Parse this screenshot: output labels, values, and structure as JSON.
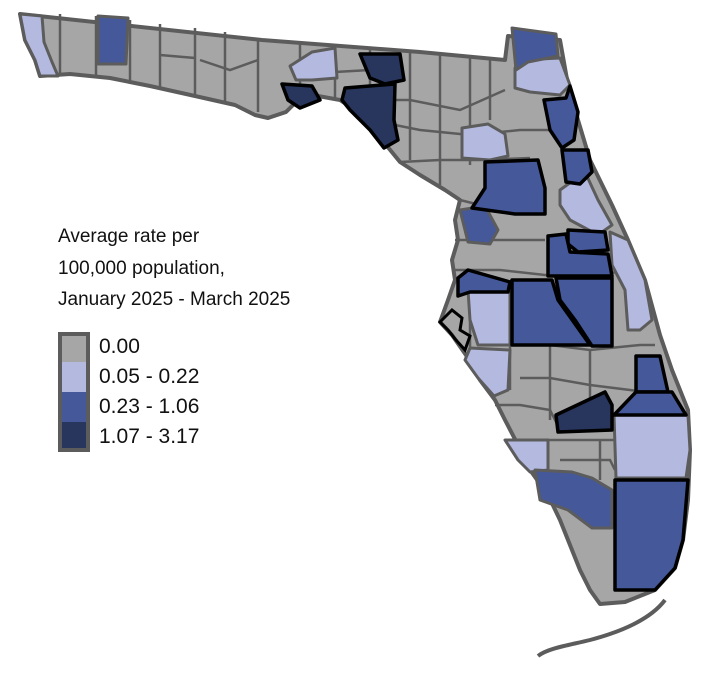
{
  "legend": {
    "title_lines": [
      "Average rate per",
      "100,000 population,",
      "January 2025 - March 2025"
    ],
    "classes": [
      {
        "label": "0.00",
        "color": "#a6a6a6"
      },
      {
        "label": "0.05 - 0.22",
        "color": "#b4b9df"
      },
      {
        "label": "0.23 - 1.06",
        "color": "#44589a"
      },
      {
        "label": "1.07 - 3.17",
        "color": "#28365e"
      }
    ]
  },
  "colors": {
    "county_border": "#5c5c5c",
    "highlight_border": "#000000",
    "background": "#ffffff"
  }
}
